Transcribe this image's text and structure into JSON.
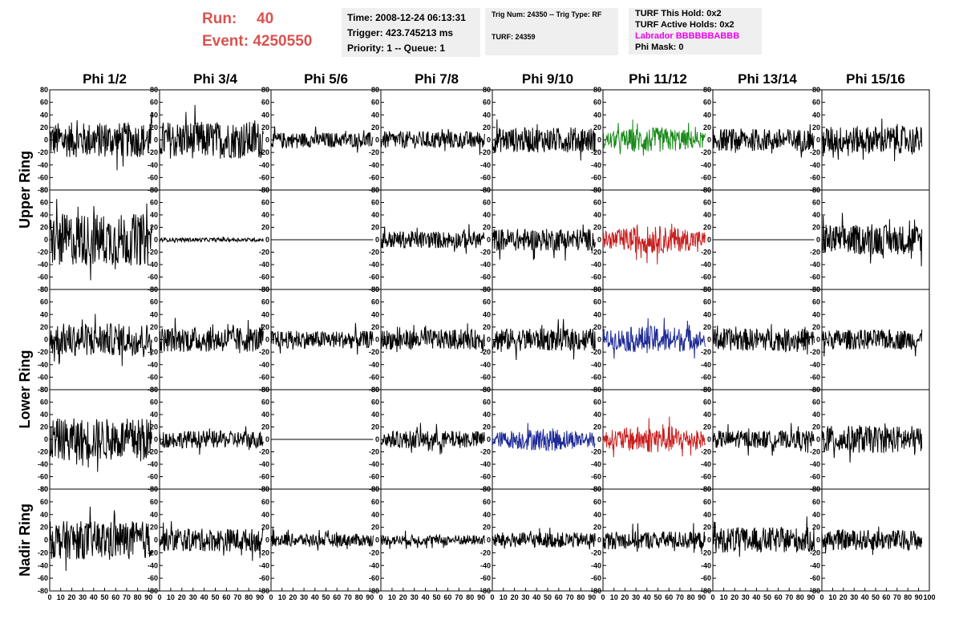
{
  "header": {
    "run_label": "Run:",
    "run_value": "40",
    "event_label": "Event:",
    "event_value": "4250550"
  },
  "time_box": {
    "time": "Time: 2008-12-24 06:13:31",
    "trigger": "Trigger: 423.745213 ms",
    "priority": "Priority: 1 -- Queue: 1"
  },
  "trig_box": {
    "trig_line": "Trig Num: 24350 -- Trig Type: RF",
    "turf_line": "TURF: 24359"
  },
  "turf_box": {
    "this_hold": "TURF This Hold: 0x2",
    "active_holds": "TURF Active Holds: 0x2",
    "labrador": "Labrador BBBBBBABBB",
    "phi_mask": "Phi Mask: 0"
  },
  "colors": {
    "header_red": "#d9534f",
    "labrador_magenta": "#ee00ee",
    "trace_black": "#000000",
    "trace_green": "#1a8a1a",
    "trace_red": "#c81e1e",
    "trace_blue": "#1e2a96"
  },
  "chart_data": {
    "type": "line",
    "description_columns": [
      "Phi 1/2",
      "Phi 3/4",
      "Phi 5/6",
      "Phi 7/8",
      "Phi 9/10",
      "Phi 11/12",
      "Phi 13/14",
      "Phi 15/16"
    ],
    "rows": [
      "Upper Ring",
      "Upper Ring",
      "Lower Ring",
      "Lower Ring",
      "Nadir Ring"
    ],
    "row_labels": [
      {
        "text": "Upper Ring",
        "rows": [
          0,
          1
        ]
      },
      {
        "text": "Lower Ring",
        "rows": [
          2,
          3
        ]
      },
      {
        "text": "Nadir Ring",
        "rows": [
          4
        ]
      }
    ],
    "xlim": [
      0,
      100
    ],
    "ylim": [
      -80,
      80
    ],
    "yticks": [
      -80,
      -60,
      -40,
      -20,
      0,
      20,
      40,
      60,
      80
    ],
    "xticks": [
      0,
      10,
      20,
      30,
      40,
      50,
      60,
      70,
      80,
      90,
      100
    ],
    "panels": [
      [
        {
          "color": "black",
          "amp": 28
        },
        {
          "color": "black",
          "amp": 30
        },
        {
          "color": "black",
          "amp": 12
        },
        {
          "color": "black",
          "amp": 14
        },
        {
          "color": "black",
          "amp": 20
        },
        {
          "color": "green",
          "amp": 20
        },
        {
          "color": "black",
          "amp": 18
        },
        {
          "color": "black",
          "amp": 22
        }
      ],
      [
        {
          "color": "black",
          "amp": 42
        },
        {
          "color": "black",
          "amp": 3
        },
        {
          "color": "black",
          "amp": 0
        },
        {
          "color": "black",
          "amp": 14
        },
        {
          "color": "black",
          "amp": 18
        },
        {
          "color": "red",
          "amp": 22
        },
        {
          "color": "black",
          "amp": 0
        },
        {
          "color": "black",
          "amp": 24
        }
      ],
      [
        {
          "color": "black",
          "amp": 26
        },
        {
          "color": "black",
          "amp": 20
        },
        {
          "color": "black",
          "amp": 14
        },
        {
          "color": "black",
          "amp": 16
        },
        {
          "color": "black",
          "amp": 18
        },
        {
          "color": "blue",
          "amp": 22
        },
        {
          "color": "black",
          "amp": 18
        },
        {
          "color": "black",
          "amp": 16
        }
      ],
      [
        {
          "color": "black",
          "amp": 34
        },
        {
          "color": "black",
          "amp": 14
        },
        {
          "color": "black",
          "amp": 0
        },
        {
          "color": "black",
          "amp": 14
        },
        {
          "color": "blue",
          "amp": 18
        },
        {
          "color": "red",
          "amp": 22
        },
        {
          "color": "black",
          "amp": 14
        },
        {
          "color": "black",
          "amp": 22
        }
      ],
      [
        {
          "color": "black",
          "amp": 30
        },
        {
          "color": "black",
          "amp": 18
        },
        {
          "color": "black",
          "amp": 10
        },
        {
          "color": "black",
          "amp": 8
        },
        {
          "color": "black",
          "amp": 12
        },
        {
          "color": "black",
          "amp": 14
        },
        {
          "color": "black",
          "amp": 20
        },
        {
          "color": "black",
          "amp": 16
        }
      ]
    ]
  }
}
